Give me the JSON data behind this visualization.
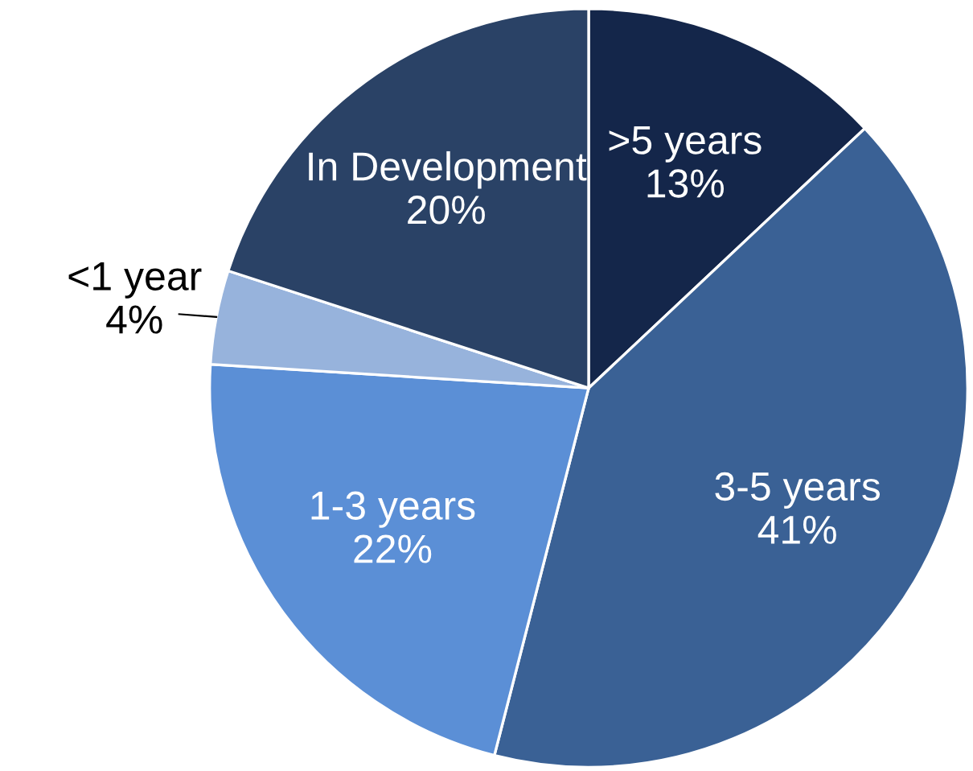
{
  "chart_data": {
    "type": "pie",
    "categories": [
      ">5 years",
      "3-5 years",
      "1-3 years",
      "<1 year",
      "In Development"
    ],
    "values": [
      13,
      41,
      22,
      4,
      20
    ],
    "colors": [
      "#14264a",
      "#3a6195",
      "#5b8fd6",
      "#97b3dc",
      "#2a4266"
    ],
    "value_labels": [
      "13%",
      "41%",
      "22%",
      "4%",
      "20%"
    ]
  }
}
